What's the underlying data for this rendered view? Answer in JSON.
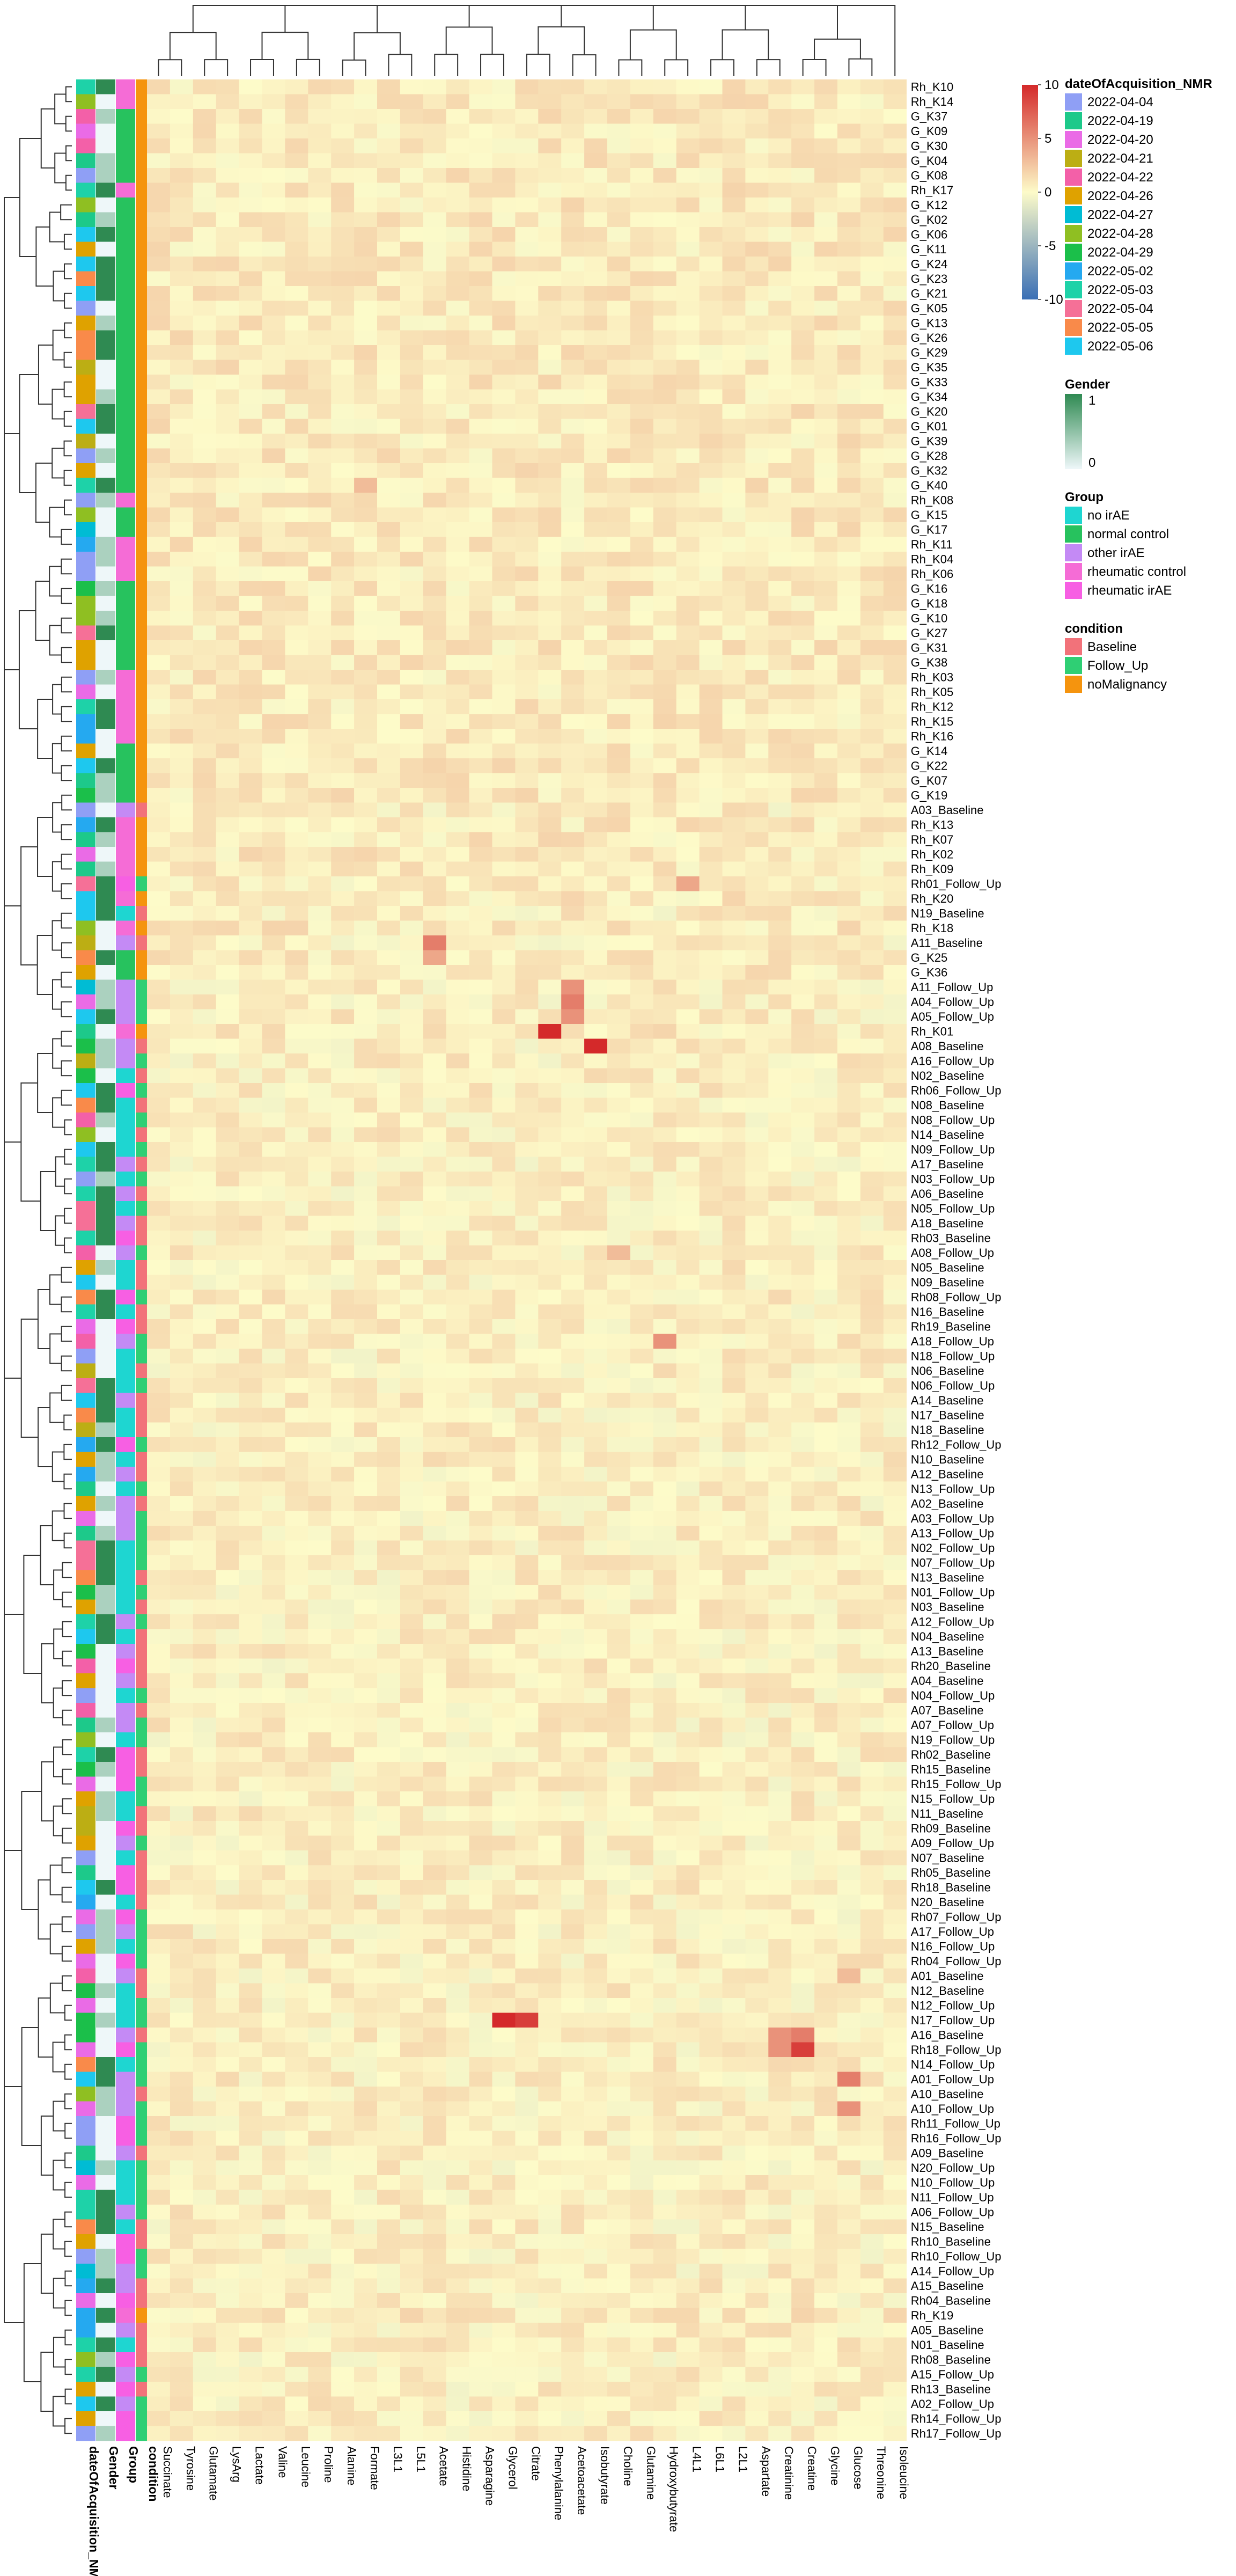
{
  "chart_data": {
    "type": "heatmap",
    "title": "",
    "rows": [
      "Rh_K10",
      "Rh_K14",
      "G_K37",
      "G_K09",
      "G_K30",
      "G_K04",
      "G_K08",
      "Rh_K17",
      "G_K12",
      "G_K02",
      "G_K06",
      "G_K11",
      "G_K24",
      "G_K23",
      "G_K21",
      "G_K05",
      "G_K13",
      "G_K26",
      "G_K29",
      "G_K35",
      "G_K33",
      "G_K34",
      "G_K20",
      "G_K01",
      "G_K39",
      "G_K28",
      "G_K32",
      "G_K40",
      "Rh_K08",
      "G_K15",
      "G_K17",
      "Rh_K11",
      "Rh_K04",
      "Rh_K06",
      "G_K16",
      "G_K18",
      "G_K10",
      "G_K27",
      "G_K31",
      "G_K38",
      "Rh_K03",
      "Rh_K05",
      "Rh_K12",
      "Rh_K15",
      "Rh_K16",
      "G_K14",
      "G_K22",
      "G_K07",
      "G_K19",
      "A03_Baseline",
      "Rh_K13",
      "Rh_K07",
      "Rh_K02",
      "Rh_K09",
      "Rh01_Follow_Up",
      "Rh_K20",
      "N19_Baseline",
      "Rh_K18",
      "A11_Baseline",
      "G_K25",
      "G_K36",
      "A11_Follow_Up",
      "A04_Follow_Up",
      "A05_Follow_Up",
      "Rh_K01",
      "A08_Baseline",
      "A16_Follow_Up",
      "N02_Baseline",
      "Rh06_Follow_Up",
      "N08_Baseline",
      "N08_Follow_Up",
      "N14_Baseline",
      "N09_Follow_Up",
      "A17_Baseline",
      "N03_Follow_Up",
      "A06_Baseline",
      "N05_Follow_Up",
      "A18_Baseline",
      "Rh03_Baseline",
      "A08_Follow_Up",
      "N05_Baseline",
      "N09_Baseline",
      "Rh08_Follow_Up",
      "N16_Baseline",
      "Rh19_Baseline",
      "A18_Follow_Up",
      "N18_Follow_Up",
      "N06_Baseline",
      "N06_Follow_Up",
      "A14_Baseline",
      "N17_Baseline",
      "N18_Baseline",
      "Rh12_Follow_Up",
      "N10_Baseline",
      "A12_Baseline",
      "N13_Follow_Up",
      "A02_Baseline",
      "A03_Follow_Up",
      "A13_Follow_Up",
      "N02_Follow_Up",
      "N07_Follow_Up",
      "N13_Baseline",
      "N01_Follow_Up",
      "N03_Baseline",
      "A12_Follow_Up",
      "N04_Baseline",
      "A13_Baseline",
      "Rh20_Baseline",
      "A04_Baseline",
      "N04_Follow_Up",
      "A07_Baseline",
      "A07_Follow_Up",
      "N19_Follow_Up",
      "Rh02_Baseline",
      "Rh15_Baseline",
      "Rh15_Follow_Up",
      "N15_Follow_Up",
      "N11_Baseline",
      "Rh09_Baseline",
      "A09_Follow_Up",
      "N07_Baseline",
      "Rh05_Baseline",
      "Rh18_Baseline",
      "N20_Baseline",
      "Rh07_Follow_Up",
      "A17_Follow_Up",
      "N16_Follow_Up",
      "Rh04_Follow_Up",
      "A01_Baseline",
      "N12_Baseline",
      "N12_Follow_Up",
      "N17_Follow_Up",
      "A16_Baseline",
      "Rh18_Follow_Up",
      "N14_Follow_Up",
      "A01_Follow_Up",
      "A10_Baseline",
      "A10_Follow_Up",
      "Rh11_Follow_Up",
      "Rh16_Follow_Up",
      "A09_Baseline",
      "N20_Follow_Up",
      "N10_Follow_Up",
      "N11_Follow_Up",
      "A06_Follow_Up",
      "N15_Baseline",
      "Rh10_Baseline",
      "Rh10_Follow_Up",
      "A14_Follow_Up",
      "A15_Baseline",
      "Rh04_Baseline",
      "Rh_K19",
      "A05_Baseline",
      "N01_Baseline",
      "Rh08_Baseline",
      "A15_Follow_Up",
      "Rh13_Baseline",
      "A02_Follow_Up",
      "Rh14_Follow_Up",
      "Rh17_Follow_Up"
    ],
    "columns": [
      "Succinate",
      "Tyrosine",
      "Glutamate",
      "LysArg",
      "Lactate",
      "Valine",
      "Leucine",
      "Proline",
      "Alanine",
      "Formate",
      "L3L1",
      "L5L1",
      "Acetate",
      "Histidine",
      "Asparagine",
      "Glycerol",
      "Citrate",
      "Phenylalanine",
      "Acetoacetate",
      "Isobutyrate",
      "Choline",
      "Glutamine",
      "Hydroxybutyrate",
      "L4L1",
      "L6L1",
      "L2L1",
      "Aspartate",
      "Creatinine",
      "Creatine",
      "Glycine",
      "Glucose",
      "Threonine",
      "Isoleucine"
    ],
    "annotation_columns": [
      "dateOfAcquisition_NMR",
      "Gender",
      "Group",
      "condition"
    ],
    "color_scale": {
      "min": -10,
      "max": 10,
      "ticks": [
        10,
        5,
        0,
        -5,
        -10
      ],
      "low": "#3a6fb5",
      "mid": "#fdfbc9",
      "high": "#d4292a"
    },
    "high_values": [
      {
        "row": "A11_Baseline",
        "column": "Acetate",
        "value": 6
      },
      {
        "row": "G_K25",
        "column": "Acetate",
        "value": 4
      },
      {
        "row": "A11_Follow_Up",
        "column": "Acetoacetate",
        "value": 5
      },
      {
        "row": "A04_Follow_Up",
        "column": "Acetoacetate",
        "value": 6
      },
      {
        "row": "A05_Follow_Up",
        "column": "Acetoacetate",
        "value": 5
      },
      {
        "row": "Rh_K01",
        "column": "Phenylalanine",
        "value": 10
      },
      {
        "row": "A08_Baseline",
        "column": "Isobutyrate",
        "value": 10
      },
      {
        "row": "N17_Follow_Up",
        "column": "Glycerol",
        "value": 10
      },
      {
        "row": "N17_Follow_Up",
        "column": "Citrate",
        "value": 9
      },
      {
        "row": "A16_Baseline",
        "column": "Creatine",
        "value": 6
      },
      {
        "row": "Rh18_Follow_Up",
        "column": "Creatine",
        "value": 9
      },
      {
        "row": "A16_Baseline",
        "column": "Creatinine",
        "value": 5
      },
      {
        "row": "Rh18_Follow_Up",
        "column": "Creatinine",
        "value": 5
      },
      {
        "row": "A01_Follow_Up",
        "column": "Glucose",
        "value": 6
      },
      {
        "row": "A10_Follow_Up",
        "column": "Glucose",
        "value": 5
      },
      {
        "row": "A18_Follow_Up",
        "column": "Hydroxybutyrate",
        "value": 5
      },
      {
        "row": "Rh01_Follow_Up",
        "column": "L4L1",
        "value": 4
      },
      {
        "row": "A08_Follow_Up",
        "column": "Choline",
        "value": 3
      },
      {
        "row": "G_K40",
        "column": "Formate",
        "value": 3
      },
      {
        "row": "A01_Baseline",
        "column": "Glucose",
        "value": 3
      }
    ],
    "legends": [
      {
        "title": "dateOfAcquisition_NMR",
        "type": "discrete",
        "items": [
          {
            "label": "2022-04-04",
            "color": "#8f9ff5"
          },
          {
            "label": "2022-04-19",
            "color": "#1dc98a"
          },
          {
            "label": "2022-04-20",
            "color": "#ea6be6"
          },
          {
            "label": "2022-04-21",
            "color": "#bcae14"
          },
          {
            "label": "2022-04-22",
            "color": "#f360a8"
          },
          {
            "label": "2022-04-26",
            "color": "#dfa200"
          },
          {
            "label": "2022-04-27",
            "color": "#00bcd4"
          },
          {
            "label": "2022-04-28",
            "color": "#8fbf22"
          },
          {
            "label": "2022-04-29",
            "color": "#1bbf4a"
          },
          {
            "label": "2022-05-02",
            "color": "#25a9f0"
          },
          {
            "label": "2022-05-03",
            "color": "#1ed2a8"
          },
          {
            "label": "2022-05-04",
            "color": "#f57097"
          },
          {
            "label": "2022-05-05",
            "color": "#f98a4a"
          },
          {
            "label": "2022-05-06",
            "color": "#1ec8ee"
          }
        ]
      },
      {
        "title": "Gender",
        "type": "continuous",
        "ticks": [
          "1",
          "0"
        ],
        "high": "#2f8a52",
        "low": "#eef7f9"
      },
      {
        "title": "Group",
        "type": "discrete",
        "items": [
          {
            "label": "no irAE",
            "color": "#1ed6d1"
          },
          {
            "label": "normal control",
            "color": "#27c25e"
          },
          {
            "label": "other irAE",
            "color": "#c48af5"
          },
          {
            "label": "rheumatic control",
            "color": "#f56cd6"
          },
          {
            "label": "rheumatic irAE",
            "color": "#f75fe3"
          }
        ]
      },
      {
        "title": "condition",
        "type": "discrete",
        "items": [
          {
            "label": "Baseline",
            "color": "#f2727a"
          },
          {
            "label": "Follow_Up",
            "color": "#2fcf74"
          },
          {
            "label": "noMalignancy",
            "color": "#f5940e"
          }
        ]
      }
    ]
  }
}
